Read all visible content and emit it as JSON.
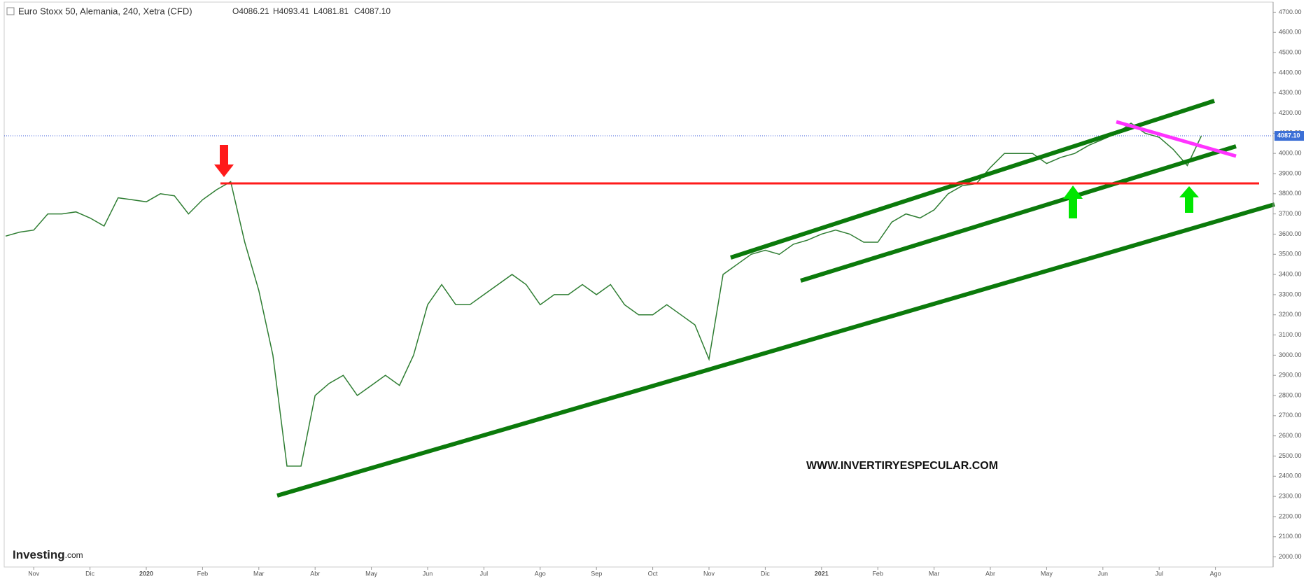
{
  "chart_data": {
    "type": "line",
    "title": "Euro Stoxx 50, Alemania, 240, Xetra (CFD)",
    "ohlc": [
      "O4086.21",
      "H4093.41",
      "L4081.81",
      "C4087.10"
    ],
    "watermark": "WWW.INVERTIRYESPECULAR.COM",
    "brand": "Investing",
    "brand_suffix": ".com",
    "last_price": {
      "value": 4087.1,
      "label": "4087.10"
    },
    "categories": [
      null,
      null,
      "Nov",
      null,
      null,
      null,
      "Dic",
      null,
      null,
      null,
      "2020",
      null,
      null,
      null,
      "Feb",
      null,
      null,
      null,
      "Mar",
      null,
      null,
      null,
      "Abr",
      null,
      null,
      null,
      "May",
      null,
      null,
      null,
      "Jun",
      null,
      null,
      null,
      "Jul",
      null,
      null,
      null,
      "Ago",
      null,
      null,
      null,
      "Sep",
      null,
      null,
      null,
      "Oct",
      null,
      null,
      null,
      "Nov",
      null,
      null,
      null,
      "Dic",
      null,
      null,
      null,
      "2021",
      null,
      null,
      null,
      "Feb",
      null,
      null,
      null,
      "Mar",
      null,
      null,
      null,
      "Abr",
      null,
      null,
      null,
      "May",
      null,
      null,
      null,
      "Jun",
      null,
      null,
      null,
      "Jul",
      null,
      null,
      null,
      "Ago"
    ],
    "series": [
      {
        "color": "#2e7d32",
        "values": [
          3590,
          3610,
          3620,
          3700,
          3700,
          3710,
          3680,
          3640,
          3780,
          3770,
          3760,
          3800,
          3790,
          3700,
          3770,
          3820,
          3860,
          3560,
          3320,
          3000,
          2450,
          2450,
          2800,
          2860,
          2900,
          2800,
          2850,
          2900,
          2850,
          3000,
          3250,
          3350,
          3250,
          3250,
          3300,
          3350,
          3400,
          3350,
          3250,
          3300,
          3300,
          3350,
          3300,
          3350,
          3250,
          3200,
          3200,
          3250,
          3200,
          3150,
          2980,
          3400,
          3450,
          3500,
          3520,
          3500,
          3550,
          3570,
          3600,
          3620,
          3600,
          3560,
          3560,
          3660,
          3700,
          3680,
          3720,
          3800,
          3840,
          3850,
          3930,
          4000,
          4000,
          4000,
          3950,
          3980,
          4000,
          4040,
          4070,
          4100,
          4150,
          4100,
          4080,
          4020,
          3940,
          4087,
          null
        ]
      }
    ],
    "ylim": [
      1950,
      4750
    ],
    "yticks": [
      {
        "value": 2000,
        "label": "2000.00"
      },
      {
        "value": 2100,
        "label": "2100.00"
      },
      {
        "value": 2200,
        "label": "2200.00"
      },
      {
        "value": 2300,
        "label": "2300.00"
      },
      {
        "value": 2400,
        "label": "2400.00"
      },
      {
        "value": 2500,
        "label": "2500.00"
      },
      {
        "value": 2600,
        "label": "2600.00"
      },
      {
        "value": 2700,
        "label": "2700.00"
      },
      {
        "value": 2800,
        "label": "2800.00"
      },
      {
        "value": 2900,
        "label": "2900.00"
      },
      {
        "value": 3000,
        "label": "3000.00"
      },
      {
        "value": 3100,
        "label": "3100.00"
      },
      {
        "value": 3200,
        "label": "3200.00"
      },
      {
        "value": 3300,
        "label": "3300.00"
      },
      {
        "value": 3400,
        "label": "3400.00"
      },
      {
        "value": 3500,
        "label": "3500.00"
      },
      {
        "value": 3600,
        "label": "3600.00"
      },
      {
        "value": 3700,
        "label": "3700.00"
      },
      {
        "value": 3800,
        "label": "3800.00"
      },
      {
        "value": 3900,
        "label": "3900.00"
      },
      {
        "value": 4000,
        "label": "4000.00"
      },
      {
        "value": 4100,
        "label": "4100.00"
      },
      {
        "value": 4200,
        "label": "4200.00"
      },
      {
        "value": 4300,
        "label": "4300.00"
      },
      {
        "value": 4400,
        "label": "4400.00"
      },
      {
        "value": 4500,
        "label": "4500.00"
      },
      {
        "value": 4600,
        "label": "4600.00"
      },
      {
        "value": 4700,
        "label": "4700.00"
      }
    ]
  }
}
